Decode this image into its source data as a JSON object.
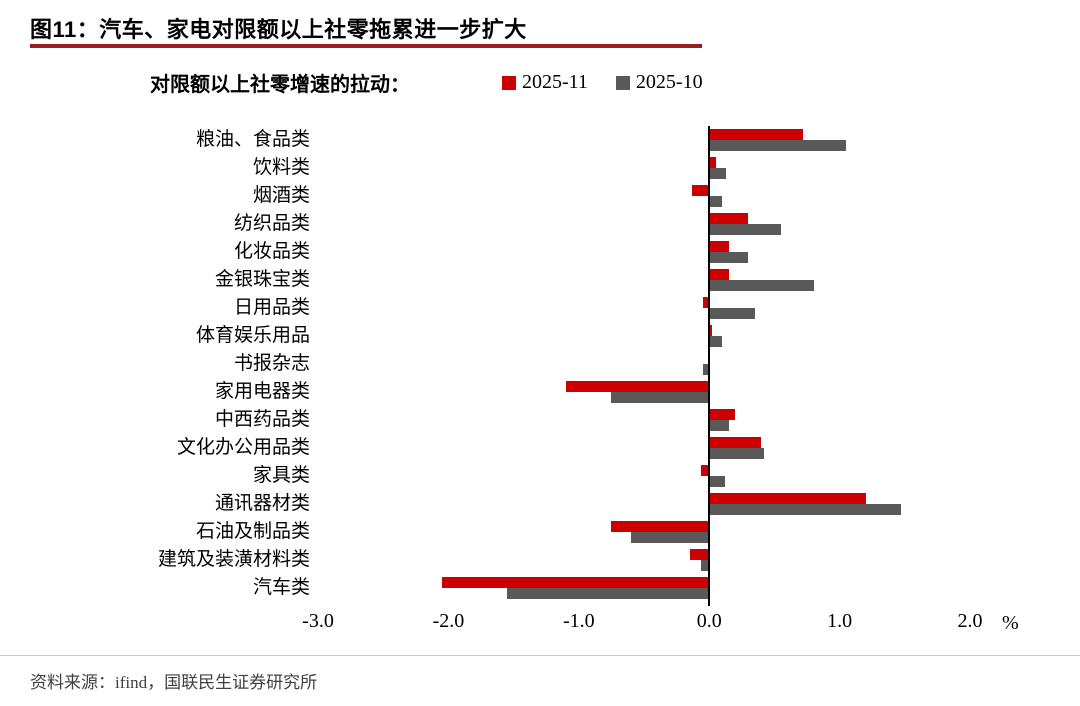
{
  "page": {
    "title": "图11：汽车、家电对限额以上社零拖累进一步扩大",
    "source": "资料来源：ifind，国联民生证券研究所"
  },
  "caption": "对限额以上社零增速的拉动：",
  "legend": {
    "items": [
      {
        "label": "2025-11",
        "color": "#CC0000"
      },
      {
        "label": "2025-10",
        "color": "#595959"
      }
    ]
  },
  "axis": {
    "ticks": [
      "-3.0",
      "-2.0",
      "-1.0",
      "0.0",
      "1.0",
      "2.0"
    ],
    "unit": "%"
  },
  "colors": {
    "accent_rule": "#9A1D1D",
    "series_red": "#CC0000",
    "series_gray": "#595959"
  },
  "chart_data": {
    "type": "bar",
    "orientation": "horizontal",
    "title": "图11：汽车、家电对限额以上社零拖累进一步扩大",
    "subtitle": "对限额以上社零增速的拉动：",
    "xlabel": "",
    "ylabel": "",
    "unit": "%",
    "xlim": [
      -3.0,
      2.0
    ],
    "xticks": [
      -3.0,
      -2.0,
      -1.0,
      0.0,
      1.0,
      2.0
    ],
    "grid": false,
    "legend_position": "top",
    "categories": [
      "粮油、食品类",
      "饮料类",
      "烟酒类",
      "纺织品类",
      "化妆品类",
      "金银珠宝类",
      "日用品类",
      "体育娱乐用品",
      "书报杂志",
      "家用电器类",
      "中西药品类",
      "文化办公用品类",
      "家具类",
      "通讯器材类",
      "石油及制品类",
      "建筑及装潢材料类",
      "汽车类"
    ],
    "series": [
      {
        "name": "2025-11",
        "color": "#CC0000",
        "values": [
          0.72,
          0.05,
          -0.13,
          0.3,
          0.15,
          0.15,
          -0.05,
          0.02,
          0.0,
          -1.1,
          0.2,
          0.4,
          -0.06,
          1.2,
          -0.75,
          -0.15,
          -2.05
        ]
      },
      {
        "name": "2025-10",
        "color": "#595959",
        "values": [
          1.05,
          0.13,
          0.1,
          0.55,
          0.3,
          0.8,
          0.35,
          0.1,
          -0.05,
          -0.75,
          0.15,
          0.42,
          0.12,
          1.47,
          -0.6,
          -0.06,
          -1.55
        ]
      }
    ]
  }
}
